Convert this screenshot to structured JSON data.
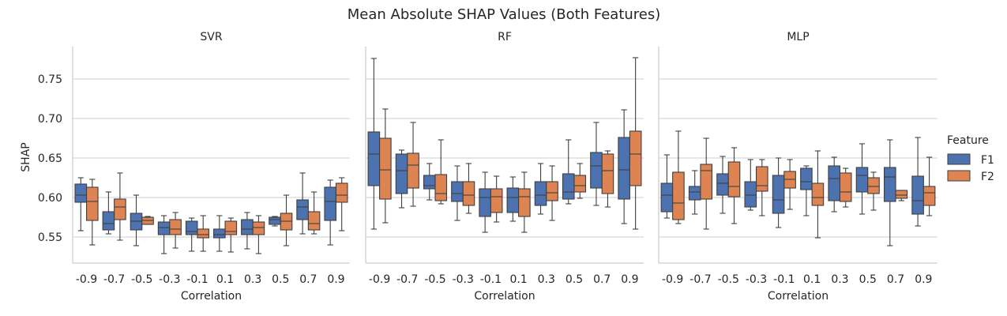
{
  "chart_data": {
    "type": "box",
    "title": "Mean Absolute SHAP Values (Both Features)",
    "ylabel": "SHAP",
    "xlabel": "Correlation",
    "ylim": [
      0.516,
      0.79
    ],
    "yticks": [
      0.55,
      0.6,
      0.65,
      0.7,
      0.75
    ],
    "ytick_labels": [
      "0.55",
      "0.60",
      "0.65",
      "0.70",
      "0.75"
    ],
    "categories": [
      "-0.9",
      "-0.7",
      "-0.5",
      "-0.3",
      "-0.1",
      "0.1",
      "0.3",
      "0.5",
      "0.7",
      "0.9"
    ],
    "grid": "horizontal",
    "legend": {
      "title": "Feature",
      "position": "right",
      "entries": [
        {
          "name": "F1",
          "color": "#4c72b0"
        },
        {
          "name": "F2",
          "color": "#dd8452"
        }
      ]
    },
    "colors": {
      "F1": "#4c72b0",
      "F2": "#dd8452",
      "grid": "#cccccc",
      "axis": "#cccccc",
      "text": "#262626",
      "line": "#3f3f3f"
    },
    "panels": [
      {
        "title": "SVR",
        "series": [
          {
            "name": "F1",
            "boxes": [
              {
                "whislo": 0.558,
                "q1": 0.594,
                "med": 0.603,
                "q3": 0.617,
                "whishi": 0.625
              },
              {
                "whislo": 0.554,
                "q1": 0.559,
                "med": 0.567,
                "q3": 0.582,
                "whishi": 0.607
              },
              {
                "whislo": 0.539,
                "q1": 0.559,
                "med": 0.57,
                "q3": 0.58,
                "whishi": 0.603
              },
              {
                "whislo": 0.529,
                "q1": 0.553,
                "med": 0.562,
                "q3": 0.569,
                "whishi": 0.577
              },
              {
                "whislo": 0.532,
                "q1": 0.553,
                "med": 0.557,
                "q3": 0.57,
                "whishi": 0.574
              },
              {
                "whislo": 0.532,
                "q1": 0.549,
                "med": 0.553,
                "q3": 0.56,
                "whishi": 0.577
              },
              {
                "whislo": 0.535,
                "q1": 0.553,
                "med": 0.56,
                "q3": 0.572,
                "whishi": 0.581
              },
              {
                "whislo": 0.564,
                "q1": 0.566,
                "med": 0.572,
                "q3": 0.575,
                "whishi": 0.576
              },
              {
                "whislo": 0.554,
                "q1": 0.572,
                "med": 0.588,
                "q3": 0.597,
                "whishi": 0.631
              },
              {
                "whislo": 0.54,
                "q1": 0.571,
                "med": 0.595,
                "q3": 0.613,
                "whishi": 0.622
              }
            ]
          },
          {
            "name": "F2",
            "boxes": [
              {
                "whislo": 0.54,
                "q1": 0.571,
                "med": 0.595,
                "q3": 0.613,
                "whishi": 0.623
              },
              {
                "whislo": 0.546,
                "q1": 0.572,
                "med": 0.588,
                "q3": 0.598,
                "whishi": 0.631
              },
              {
                "whislo": 0.566,
                "q1": 0.566,
                "med": 0.571,
                "q3": 0.575,
                "whishi": 0.576
              },
              {
                "whislo": 0.536,
                "q1": 0.553,
                "med": 0.56,
                "q3": 0.572,
                "whishi": 0.581
              },
              {
                "whislo": 0.532,
                "q1": 0.549,
                "med": 0.553,
                "q3": 0.56,
                "whishi": 0.577
              },
              {
                "whislo": 0.531,
                "q1": 0.553,
                "med": 0.557,
                "q3": 0.57,
                "whishi": 0.574
              },
              {
                "whislo": 0.529,
                "q1": 0.553,
                "med": 0.562,
                "q3": 0.569,
                "whishi": 0.577
              },
              {
                "whislo": 0.539,
                "q1": 0.559,
                "med": 0.57,
                "q3": 0.58,
                "whishi": 0.603
              },
              {
                "whislo": 0.554,
                "q1": 0.559,
                "med": 0.567,
                "q3": 0.582,
                "whishi": 0.607
              },
              {
                "whislo": 0.558,
                "q1": 0.594,
                "med": 0.603,
                "q3": 0.618,
                "whishi": 0.625
              }
            ]
          }
        ]
      },
      {
        "title": "RF",
        "series": [
          {
            "name": "F1",
            "boxes": [
              {
                "whislo": 0.56,
                "q1": 0.615,
                "med": 0.655,
                "q3": 0.683,
                "whishi": 0.776
              },
              {
                "whislo": 0.587,
                "q1": 0.605,
                "med": 0.634,
                "q3": 0.655,
                "whishi": 0.66
              },
              {
                "whislo": 0.597,
                "q1": 0.611,
                "med": 0.615,
                "q3": 0.628,
                "whishi": 0.643
              },
              {
                "whislo": 0.571,
                "q1": 0.595,
                "med": 0.605,
                "q3": 0.62,
                "whishi": 0.64
              },
              {
                "whislo": 0.556,
                "q1": 0.576,
                "med": 0.6,
                "q3": 0.611,
                "whishi": 0.632
              },
              {
                "whislo": 0.57,
                "q1": 0.581,
                "med": 0.6,
                "q3": 0.612,
                "whishi": 0.626
              },
              {
                "whislo": 0.579,
                "q1": 0.59,
                "med": 0.603,
                "q3": 0.62,
                "whishi": 0.643
              },
              {
                "whislo": 0.592,
                "q1": 0.598,
                "med": 0.607,
                "q3": 0.63,
                "whishi": 0.673
              },
              {
                "whislo": 0.59,
                "q1": 0.612,
                "med": 0.64,
                "q3": 0.657,
                "whishi": 0.695
              },
              {
                "whislo": 0.567,
                "q1": 0.598,
                "med": 0.635,
                "q3": 0.676,
                "whishi": 0.711
              }
            ]
          },
          {
            "name": "F2",
            "boxes": [
              {
                "whislo": 0.568,
                "q1": 0.598,
                "med": 0.635,
                "q3": 0.675,
                "whishi": 0.712
              },
              {
                "whislo": 0.589,
                "q1": 0.612,
                "med": 0.641,
                "q3": 0.656,
                "whishi": 0.695
              },
              {
                "whislo": 0.592,
                "q1": 0.596,
                "med": 0.605,
                "q3": 0.629,
                "whishi": 0.673
              },
              {
                "whislo": 0.58,
                "q1": 0.59,
                "med": 0.603,
                "q3": 0.62,
                "whishi": 0.643
              },
              {
                "whislo": 0.569,
                "q1": 0.581,
                "med": 0.601,
                "q3": 0.611,
                "whishi": 0.627
              },
              {
                "whislo": 0.556,
                "q1": 0.576,
                "med": 0.601,
                "q3": 0.611,
                "whishi": 0.632
              },
              {
                "whislo": 0.571,
                "q1": 0.596,
                "med": 0.606,
                "q3": 0.62,
                "whishi": 0.64
              },
              {
                "whislo": 0.599,
                "q1": 0.607,
                "med": 0.615,
                "q3": 0.628,
                "whishi": 0.643
              },
              {
                "whislo": 0.588,
                "q1": 0.605,
                "med": 0.634,
                "q3": 0.655,
                "whishi": 0.659
              },
              {
                "whislo": 0.56,
                "q1": 0.615,
                "med": 0.655,
                "q3": 0.684,
                "whishi": 0.777
              }
            ]
          }
        ]
      },
      {
        "title": "MLP",
        "series": [
          {
            "name": "F1",
            "boxes": [
              {
                "whislo": 0.574,
                "q1": 0.582,
                "med": 0.603,
                "q3": 0.618,
                "whishi": 0.654
              },
              {
                "whislo": 0.579,
                "q1": 0.597,
                "med": 0.607,
                "q3": 0.614,
                "whishi": 0.634
              },
              {
                "whislo": 0.58,
                "q1": 0.603,
                "med": 0.618,
                "q3": 0.63,
                "whishi": 0.652
              },
              {
                "whislo": 0.584,
                "q1": 0.588,
                "med": 0.603,
                "q3": 0.62,
                "whishi": 0.648
              },
              {
                "whislo": 0.562,
                "q1": 0.58,
                "med": 0.597,
                "q3": 0.628,
                "whishi": 0.65
              },
              {
                "whislo": 0.577,
                "q1": 0.61,
                "med": 0.62,
                "q3": 0.637,
                "whishi": 0.64
              },
              {
                "whislo": 0.582,
                "q1": 0.596,
                "med": 0.624,
                "q3": 0.64,
                "whishi": 0.651
              },
              {
                "whislo": 0.579,
                "q1": 0.607,
                "med": 0.628,
                "q3": 0.638,
                "whishi": 0.668
              },
              {
                "whislo": 0.539,
                "q1": 0.595,
                "med": 0.626,
                "q3": 0.638,
                "whishi": 0.673
              },
              {
                "whislo": 0.564,
                "q1": 0.579,
                "med": 0.596,
                "q3": 0.627,
                "whishi": 0.676
              }
            ]
          },
          {
            "name": "F2",
            "boxes": [
              {
                "whislo": 0.567,
                "q1": 0.572,
                "med": 0.593,
                "q3": 0.632,
                "whishi": 0.684
              },
              {
                "whislo": 0.56,
                "q1": 0.598,
                "med": 0.634,
                "q3": 0.642,
                "whishi": 0.675
              },
              {
                "whislo": 0.567,
                "q1": 0.601,
                "med": 0.614,
                "q3": 0.645,
                "whishi": 0.663
              },
              {
                "whislo": 0.577,
                "q1": 0.608,
                "med": 0.615,
                "q3": 0.639,
                "whishi": 0.648
              },
              {
                "whislo": 0.585,
                "q1": 0.612,
                "med": 0.623,
                "q3": 0.633,
                "whishi": 0.648
              },
              {
                "whislo": 0.549,
                "q1": 0.59,
                "med": 0.6,
                "q3": 0.618,
                "whishi": 0.659
              },
              {
                "whislo": 0.588,
                "q1": 0.595,
                "med": 0.607,
                "q3": 0.631,
                "whishi": 0.637
              },
              {
                "whislo": 0.584,
                "q1": 0.605,
                "med": 0.614,
                "q3": 0.625,
                "whishi": 0.632
              },
              {
                "whislo": 0.596,
                "q1": 0.599,
                "med": 0.603,
                "q3": 0.609,
                "whishi": 0.609
              },
              {
                "whislo": 0.577,
                "q1": 0.59,
                "med": 0.606,
                "q3": 0.614,
                "whishi": 0.651
              }
            ]
          }
        ]
      }
    ]
  }
}
